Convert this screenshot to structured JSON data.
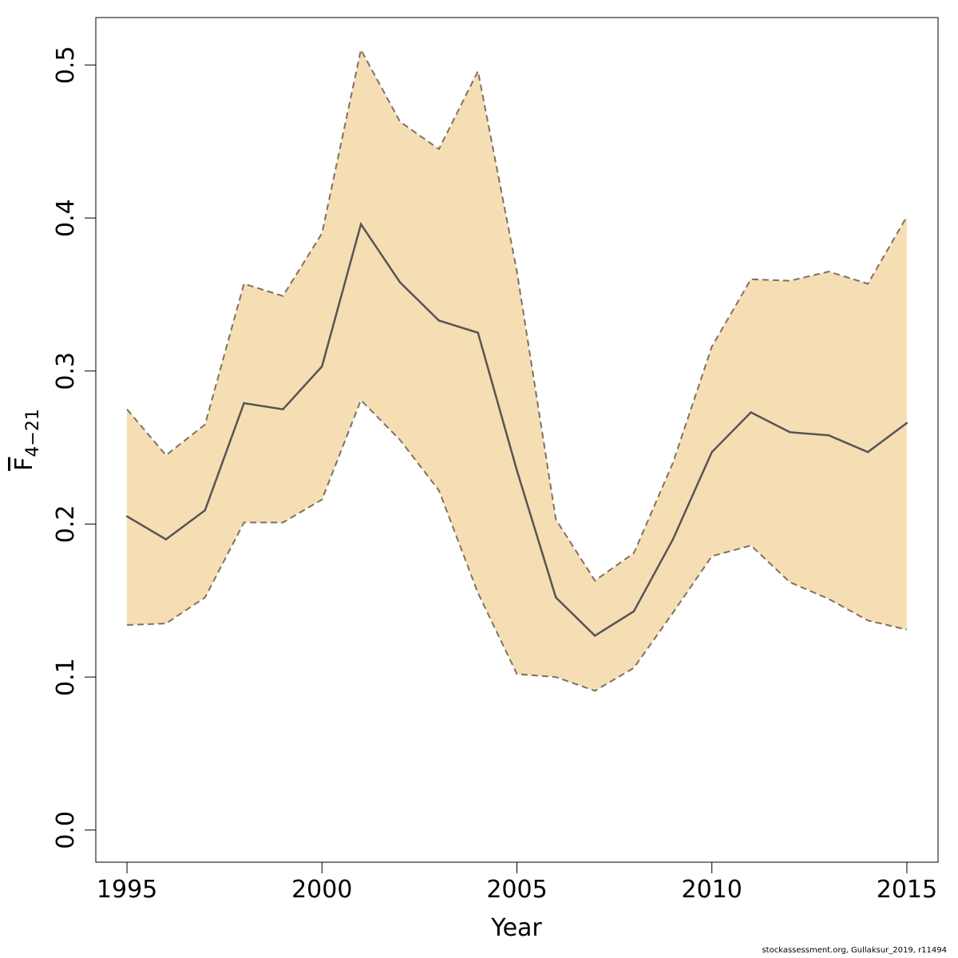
{
  "chart_data": {
    "type": "area",
    "xlabel": "Year",
    "ylabel": {
      "main": "F",
      "subscript": "4−21"
    },
    "x": [
      1995,
      1996,
      1997,
      1998,
      1999,
      2000,
      2001,
      2002,
      2003,
      2004,
      2005,
      2006,
      2007,
      2008,
      2009,
      2010,
      2011,
      2012,
      2013,
      2014,
      2015
    ],
    "series": [
      {
        "role": "estimate",
        "values": [
          0.205,
          0.19,
          0.209,
          0.279,
          0.275,
          0.303,
          0.396,
          0.358,
          0.333,
          0.325,
          0.235,
          0.152,
          0.127,
          0.143,
          0.19,
          0.247,
          0.273,
          0.26,
          0.258,
          0.247,
          0.266
        ]
      },
      {
        "role": "upper",
        "values": [
          0.275,
          0.245,
          0.265,
          0.357,
          0.349,
          0.39,
          0.51,
          0.463,
          0.445,
          0.496,
          0.365,
          0.203,
          0.163,
          0.181,
          0.24,
          0.316,
          0.36,
          0.359,
          0.365,
          0.357,
          0.401
        ]
      },
      {
        "role": "lower",
        "values": [
          0.134,
          0.135,
          0.152,
          0.201,
          0.201,
          0.216,
          0.281,
          0.255,
          0.222,
          0.155,
          0.102,
          0.1,
          0.091,
          0.106,
          0.142,
          0.179,
          0.186,
          0.162,
          0.151,
          0.137,
          0.131
        ]
      }
    ],
    "xlim": [
      1994.2,
      2015.8
    ],
    "ylim": [
      -0.021,
      0.531
    ],
    "xticks": [
      1995,
      2000,
      2005,
      2010,
      2015
    ],
    "yticks": [
      "0.0",
      "0.1",
      "0.2",
      "0.3",
      "0.4",
      "0.5"
    ],
    "grid": false,
    "colors": {
      "band": "#F5DEB3",
      "line": "#555555",
      "band_edge": "#807060"
    }
  },
  "credit": "stockassessment.org, Gullaksur_2019, r11494"
}
